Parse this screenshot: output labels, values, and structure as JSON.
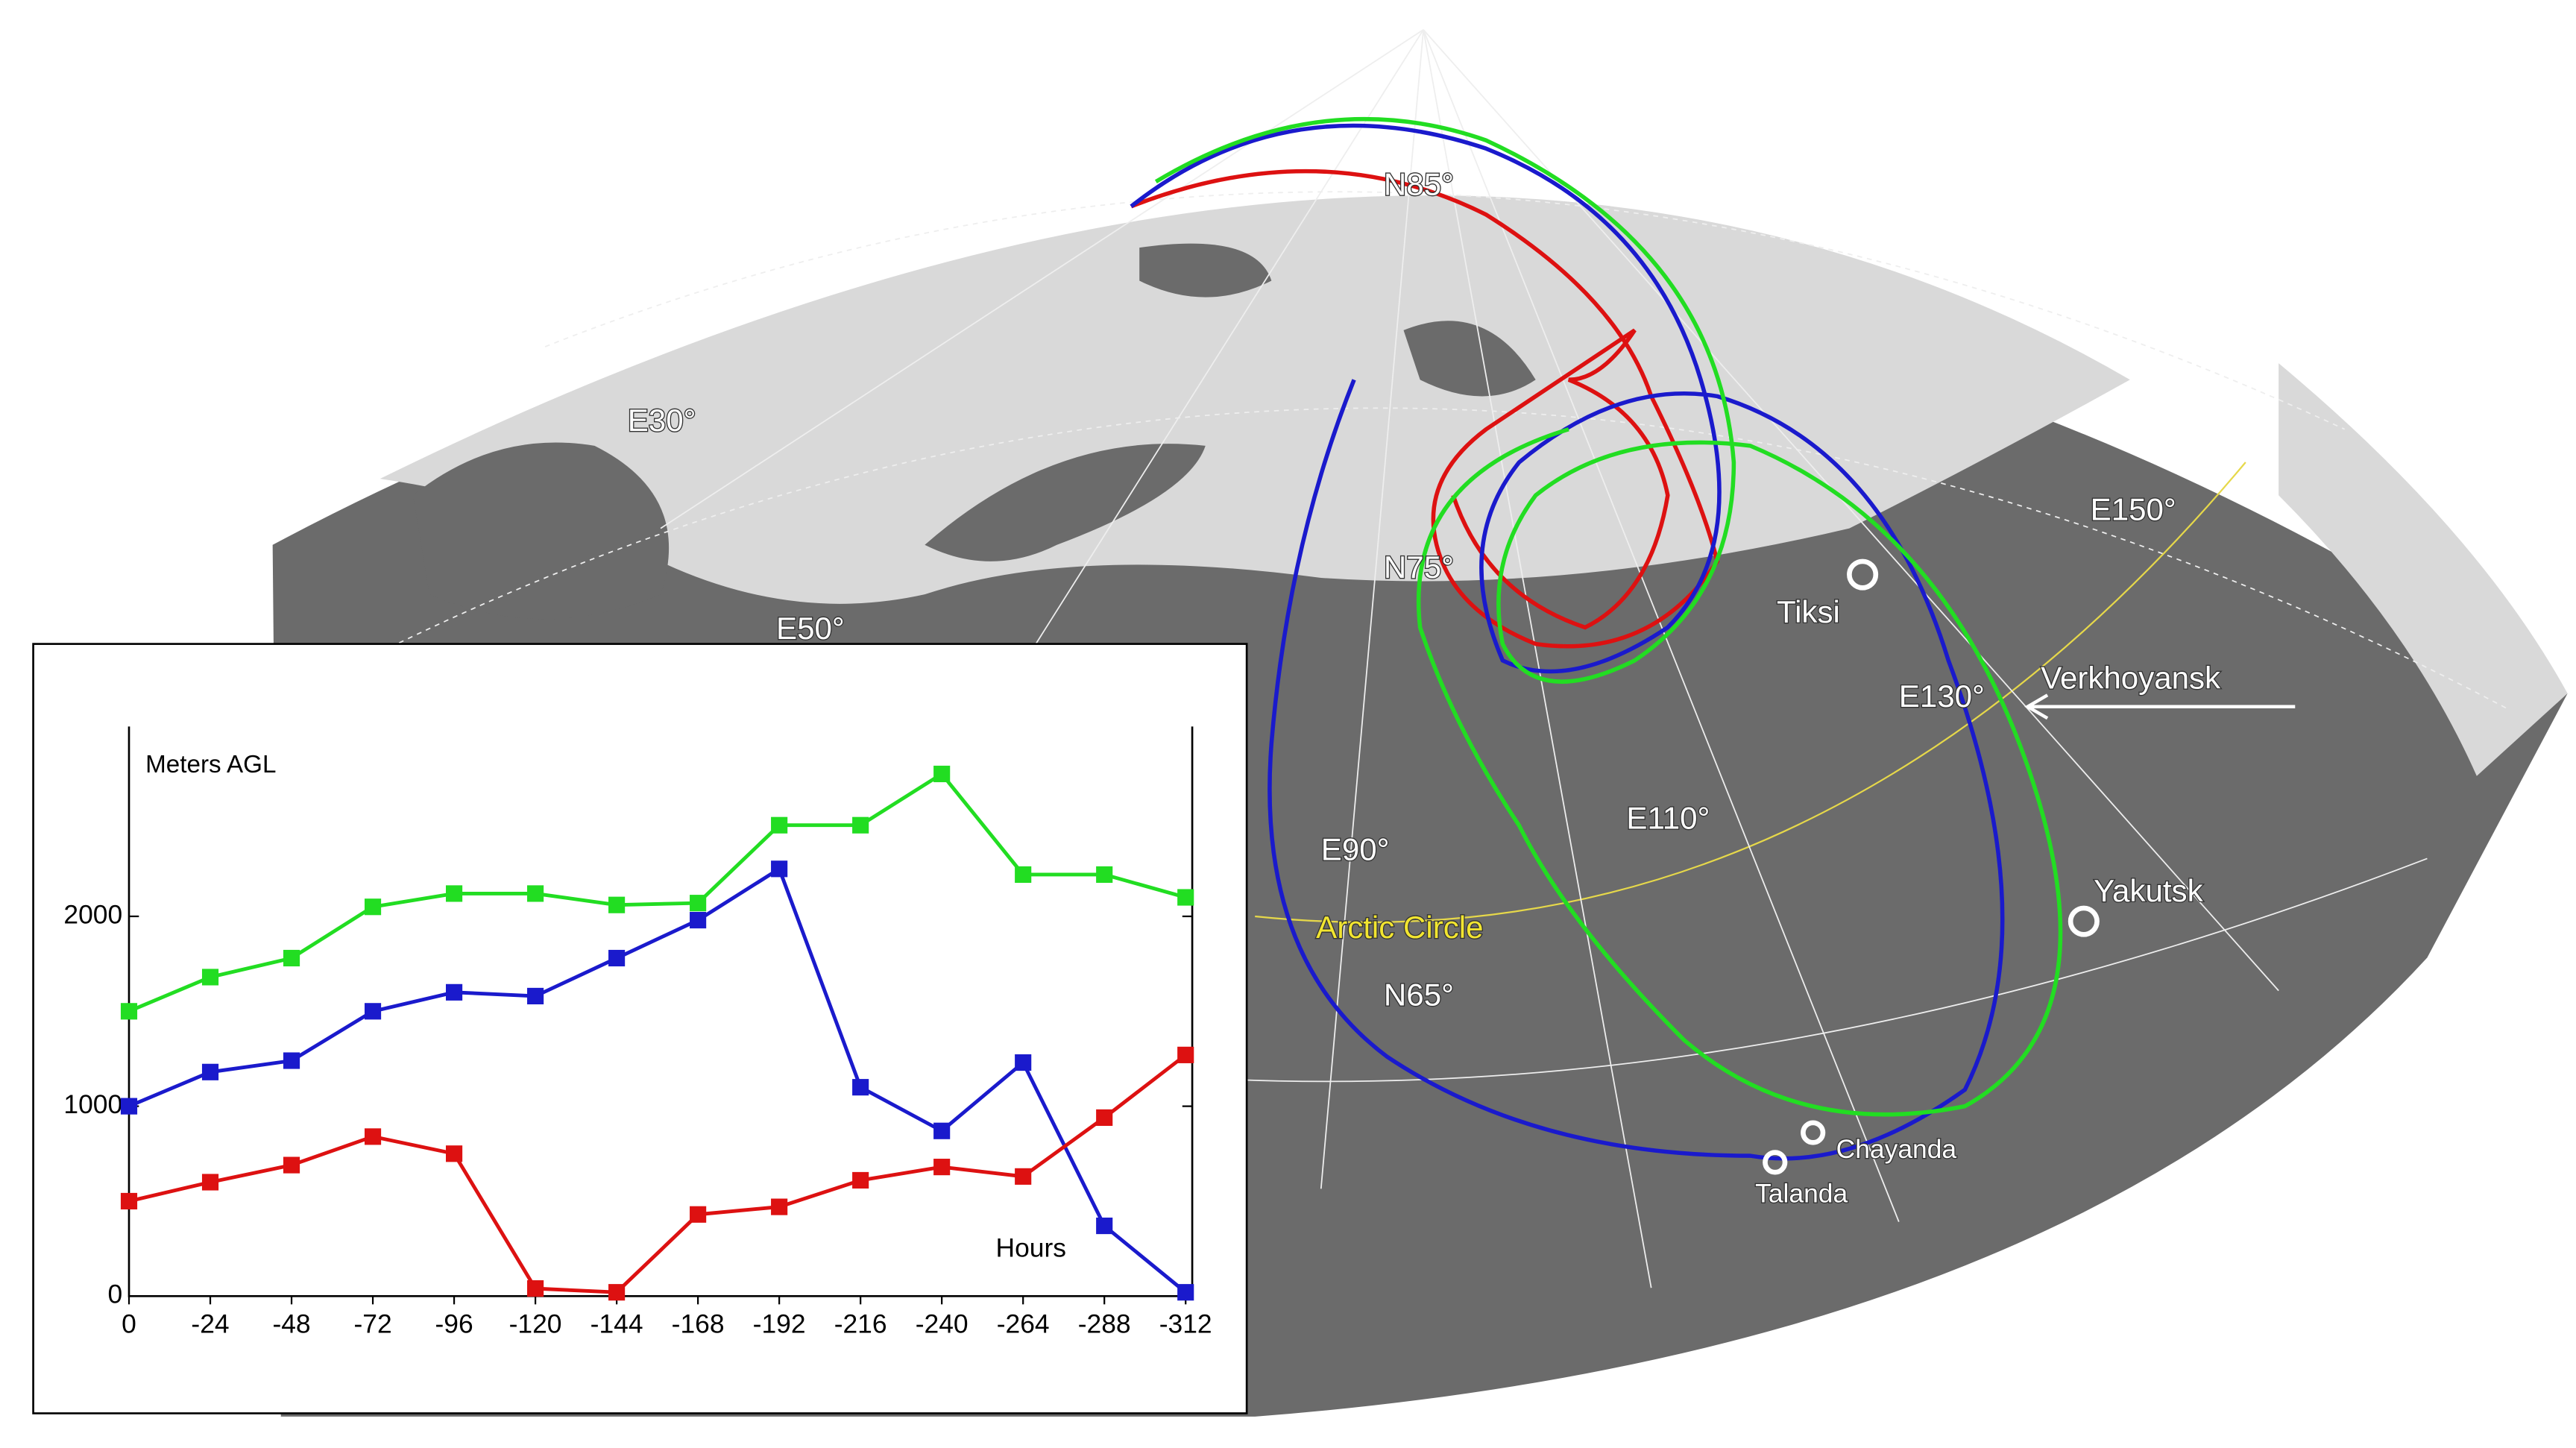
{
  "map_labels": {
    "e30": "E30°",
    "e50": "E50°",
    "n85": "N85°",
    "n75": "N75°",
    "n65": "N65°",
    "e90": "E90°",
    "e110": "E110°",
    "e130": "E130°",
    "e150": "E150°",
    "arctic_circle": "Arctic Circle",
    "tiksi": "Tiksi",
    "verkhoyansk": "Verkhoyansk",
    "yakutsk": "Yakutsk",
    "chayanda": "Chayanda",
    "talanda": "Talanda"
  },
  "chart_data": {
    "type": "line",
    "y_label": "Meters AGL",
    "x_label": "Hours",
    "x": [
      0,
      -24,
      -48,
      -72,
      -96,
      -120,
      -144,
      -168,
      -192,
      -216,
      -240,
      -264,
      -288,
      -312
    ],
    "xlim": [
      0,
      -312
    ],
    "xticks": [
      0,
      -24,
      -48,
      -72,
      -96,
      -120,
      -144,
      -168,
      -192,
      -216,
      -240,
      -264,
      -288,
      -312
    ],
    "ylim": [
      0,
      3000
    ],
    "yticks": [
      0,
      1000,
      2000
    ],
    "series": [
      {
        "color": "#22dd22",
        "values": [
          1500,
          1680,
          1780,
          2050,
          2120,
          2120,
          2060,
          2070,
          2480,
          2480,
          2750,
          2220,
          2220,
          2100
        ]
      },
      {
        "color": "#1a1acc",
        "values": [
          1000,
          1180,
          1240,
          1500,
          1600,
          1580,
          1780,
          1980,
          2250,
          1100,
          870,
          1230,
          370,
          20
        ]
      },
      {
        "color": "#dd1111",
        "values": [
          500,
          600,
          690,
          840,
          750,
          40,
          20,
          430,
          470,
          610,
          680,
          630,
          940,
          1270
        ]
      }
    ]
  }
}
